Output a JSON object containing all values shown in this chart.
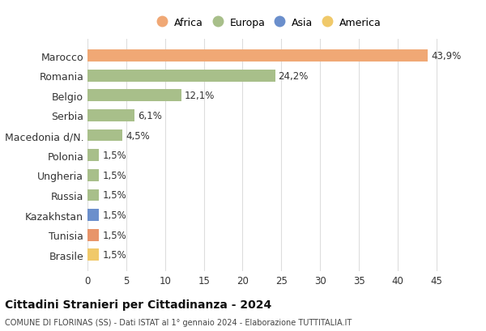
{
  "categories": [
    "Marocco",
    "Romania",
    "Belgio",
    "Serbia",
    "Macedonia d/N.",
    "Polonia",
    "Ungheria",
    "Russia",
    "Kazakhstan",
    "Tunisia",
    "Brasile"
  ],
  "values": [
    43.9,
    24.2,
    12.1,
    6.1,
    4.5,
    1.5,
    1.5,
    1.5,
    1.5,
    1.5,
    1.5
  ],
  "labels": [
    "43,9%",
    "24,2%",
    "12,1%",
    "6,1%",
    "4,5%",
    "1,5%",
    "1,5%",
    "1,5%",
    "1,5%",
    "1,5%",
    "1,5%"
  ],
  "bar_colors": [
    "#f0a875",
    "#a8bf8a",
    "#a8bf8a",
    "#a8bf8a",
    "#a8bf8a",
    "#a8bf8a",
    "#a8bf8a",
    "#a8bf8a",
    "#6b8fcc",
    "#e8956a",
    "#f0c96a"
  ],
  "legend_labels": [
    "Africa",
    "Europa",
    "Asia",
    "America"
  ],
  "legend_colors": [
    "#f0a875",
    "#a8bf8a",
    "#6b8fcc",
    "#f0c96a"
  ],
  "title": "Cittadini Stranieri per Cittadinanza - 2024",
  "subtitle": "COMUNE DI FLORINAS (SS) - Dati ISTAT al 1° gennaio 2024 - Elaborazione TUTTITALIA.IT",
  "xlim": [
    0,
    47
  ],
  "xticks": [
    0,
    5,
    10,
    15,
    20,
    25,
    30,
    35,
    40,
    45
  ],
  "background_color": "#ffffff",
  "grid_color": "#dddddd"
}
